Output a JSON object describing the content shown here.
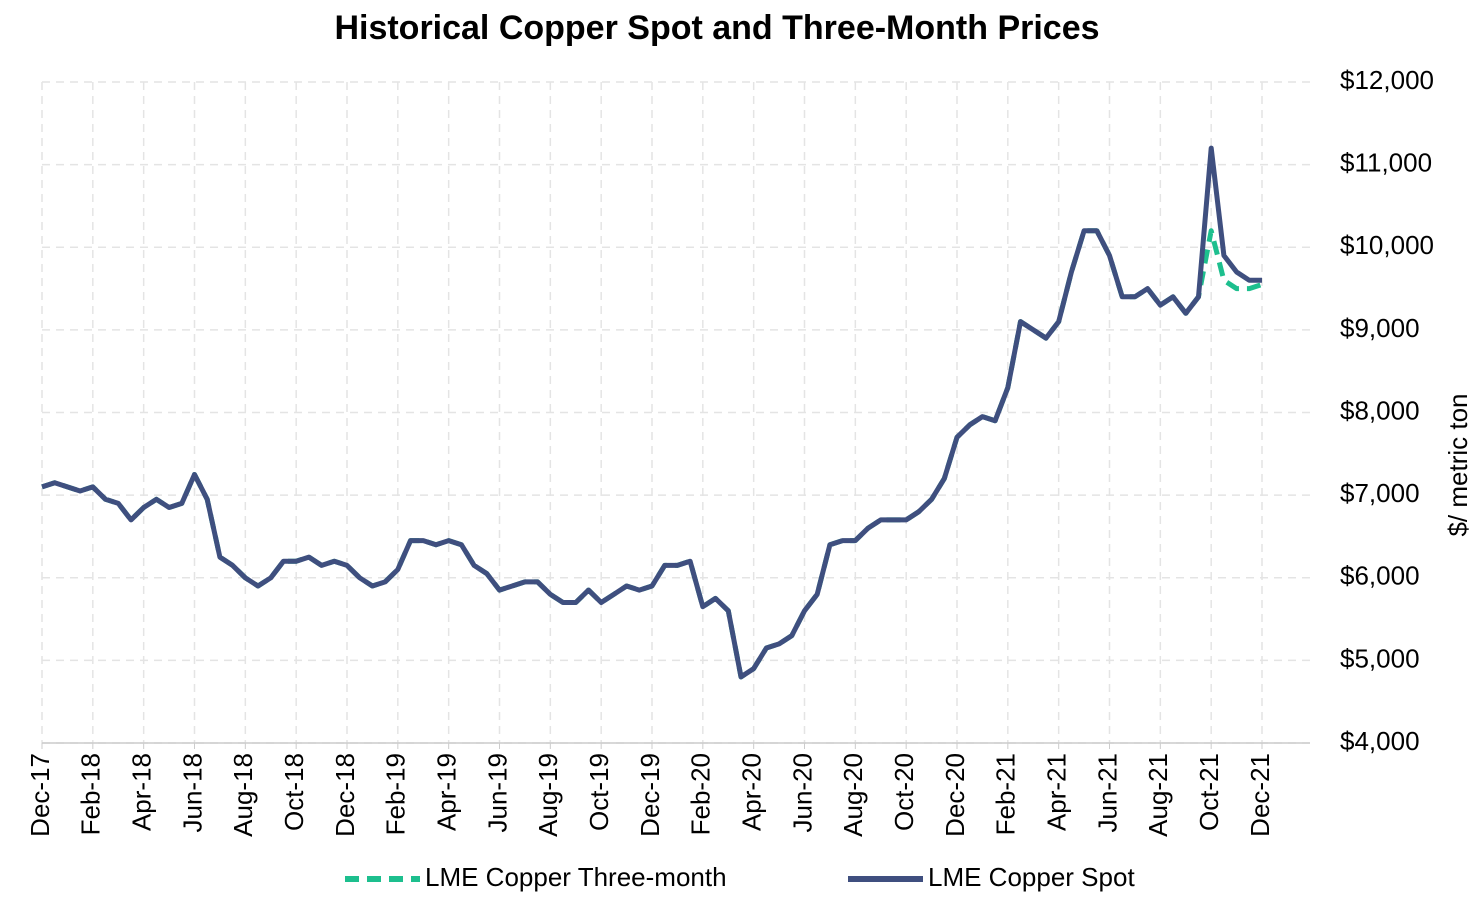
{
  "chart_data": {
    "type": "line",
    "title": "Historical Copper Spot and Three-Month Prices",
    "y_axis_label": "$/ metric ton",
    "categories": [
      "Dec-17",
      null,
      null,
      null,
      "Feb-18",
      null,
      null,
      null,
      "Apr-18",
      null,
      null,
      null,
      "Jun-18",
      null,
      null,
      null,
      "Aug-18",
      null,
      null,
      null,
      "Oct-18",
      null,
      null,
      null,
      "Dec-18",
      null,
      null,
      null,
      "Feb-19",
      null,
      null,
      null,
      "Apr-19",
      null,
      null,
      null,
      "Jun-19",
      null,
      null,
      null,
      "Aug-19",
      null,
      null,
      null,
      "Oct-19",
      null,
      null,
      null,
      "Dec-19",
      null,
      null,
      null,
      "Feb-20",
      null,
      null,
      null,
      "Apr-20",
      null,
      null,
      null,
      "Jun-20",
      null,
      null,
      null,
      "Aug-20",
      null,
      null,
      null,
      "Oct-20",
      null,
      null,
      null,
      "Dec-20",
      null,
      null,
      null,
      "Feb-21",
      null,
      null,
      null,
      "Apr-21",
      null,
      null,
      null,
      "Jun-21",
      null,
      null,
      null,
      "Aug-21",
      null,
      null,
      null,
      "Oct-21",
      null,
      null,
      null,
      "Dec-21"
    ],
    "series": [
      {
        "name": "LME Copper Three-month",
        "color": "#1dbf8e",
        "dashed": true,
        "values": [
          7100,
          7150,
          7100,
          7050,
          7100,
          6950,
          6900,
          6700,
          6850,
          6950,
          6850,
          6900,
          7250,
          6950,
          6250,
          6150,
          6000,
          5900,
          6000,
          6200,
          6200,
          6250,
          6150,
          6200,
          6150,
          6000,
          5900,
          5950,
          6100,
          6450,
          6450,
          6400,
          6450,
          6400,
          6150,
          6050,
          5850,
          5900,
          5950,
          5950,
          5800,
          5700,
          5700,
          5850,
          5700,
          5800,
          5900,
          5850,
          5900,
          6150,
          6150,
          6200,
          5650,
          5750,
          5600,
          4800,
          4900,
          5150,
          5200,
          5300,
          5600,
          5800,
          6400,
          6450,
          6450,
          6600,
          6700,
          6700,
          6700,
          6800,
          6950,
          7200,
          7700,
          7850,
          7950,
          7900,
          8300,
          9100,
          9000,
          8900,
          9100,
          9700,
          10200,
          10200,
          9900,
          9400,
          9400,
          9500,
          9300,
          9400,
          9200,
          9400,
          10200,
          9600,
          9500,
          9500,
          9550
        ]
      },
      {
        "name": "LME Copper Spot",
        "color": "#3f4f7f",
        "dashed": false,
        "values": [
          7100,
          7150,
          7100,
          7050,
          7100,
          6950,
          6900,
          6700,
          6850,
          6950,
          6850,
          6900,
          7250,
          6950,
          6250,
          6150,
          6000,
          5900,
          6000,
          6200,
          6200,
          6250,
          6150,
          6200,
          6150,
          6000,
          5900,
          5950,
          6100,
          6450,
          6450,
          6400,
          6450,
          6400,
          6150,
          6050,
          5850,
          5900,
          5950,
          5950,
          5800,
          5700,
          5700,
          5850,
          5700,
          5800,
          5900,
          5850,
          5900,
          6150,
          6150,
          6200,
          5650,
          5750,
          5600,
          4800,
          4900,
          5150,
          5200,
          5300,
          5600,
          5800,
          6400,
          6450,
          6450,
          6600,
          6700,
          6700,
          6700,
          6800,
          6950,
          7200,
          7700,
          7850,
          7950,
          7900,
          8300,
          9100,
          9000,
          8900,
          9100,
          9700,
          10200,
          10200,
          9900,
          9400,
          9400,
          9500,
          9300,
          9400,
          9200,
          9400,
          11200,
          9900,
          9700,
          9600,
          9600
        ]
      }
    ],
    "ylim": [
      4000,
      12000
    ],
    "yticks": [
      {
        "value": 4000,
        "label": "$4,000"
      },
      {
        "value": 5000,
        "label": "$5,000"
      },
      {
        "value": 6000,
        "label": "$6,000"
      },
      {
        "value": 7000,
        "label": "$7,000"
      },
      {
        "value": 8000,
        "label": "$8,000"
      },
      {
        "value": 9000,
        "label": "$9,000"
      },
      {
        "value": 10000,
        "label": "$10,000"
      },
      {
        "value": 11000,
        "label": "$11,000"
      },
      {
        "value": 12000,
        "label": "$12,000"
      }
    ],
    "grid": true,
    "legend": "bottom"
  }
}
